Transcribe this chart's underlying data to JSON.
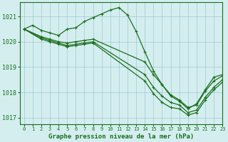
{
  "title": "Graphe pression niveau de la mer (hPa)",
  "bg_color": "#d4eef0",
  "grid_color": "#a0c8d0",
  "line_color": "#1a6e1a",
  "xlim": [
    -0.5,
    23
  ],
  "ylim": [
    1016.75,
    1021.55
  ],
  "yticks": [
    1017,
    1018,
    1019,
    1020,
    1021
  ],
  "xticks": [
    0,
    1,
    2,
    3,
    4,
    5,
    6,
    7,
    8,
    9,
    10,
    11,
    12,
    13,
    14,
    15,
    16,
    17,
    18,
    19,
    20,
    21,
    22,
    23
  ],
  "lines": [
    {
      "x": [
        0,
        1,
        2,
        3,
        4,
        5,
        6,
        7,
        8,
        9,
        10,
        11,
        12,
        13,
        14,
        15,
        16,
        17,
        18,
        19,
        20,
        21,
        22,
        23
      ],
      "y": [
        1020.5,
        1020.65,
        1020.45,
        1020.35,
        1020.25,
        1020.5,
        1020.55,
        1020.8,
        1020.95,
        1021.1,
        1021.25,
        1021.35,
        1021.05,
        1020.4,
        1019.6,
        1018.85,
        1018.3,
        1017.85,
        1017.65,
        1017.35,
        1017.55,
        1018.1,
        1018.6,
        1018.7
      ]
    },
    {
      "x": [
        0,
        2,
        3,
        4,
        5,
        6,
        7,
        8,
        14,
        15,
        16,
        17,
        18,
        19,
        20,
        21,
        22,
        23
      ],
      "y": [
        1020.5,
        1020.2,
        1020.1,
        1020.0,
        1019.95,
        1020.0,
        1020.05,
        1020.1,
        1019.2,
        1018.7,
        1018.3,
        1017.9,
        1017.7,
        1017.4,
        1017.5,
        1018.05,
        1018.45,
        1018.65
      ]
    },
    {
      "x": [
        0,
        2,
        3,
        4,
        5,
        6,
        7,
        8,
        14,
        15,
        16,
        17,
        18,
        19,
        20,
        21,
        22,
        23
      ],
      "y": [
        1020.5,
        1020.15,
        1020.05,
        1019.95,
        1019.85,
        1019.9,
        1019.95,
        1020.0,
        1018.7,
        1018.2,
        1017.85,
        1017.6,
        1017.5,
        1017.2,
        1017.3,
        1017.8,
        1018.2,
        1018.5
      ]
    },
    {
      "x": [
        0,
        2,
        3,
        4,
        5,
        6,
        7,
        8,
        14,
        15,
        16,
        17,
        18,
        19,
        20,
        21,
        22,
        23
      ],
      "y": [
        1020.5,
        1020.1,
        1020.0,
        1019.9,
        1019.8,
        1019.85,
        1019.9,
        1019.95,
        1018.45,
        1017.95,
        1017.6,
        1017.4,
        1017.35,
        1017.1,
        1017.2,
        1017.7,
        1018.1,
        1018.4
      ]
    }
  ],
  "marker": "+",
  "markersize": 3.5,
  "linewidth": 0.9
}
